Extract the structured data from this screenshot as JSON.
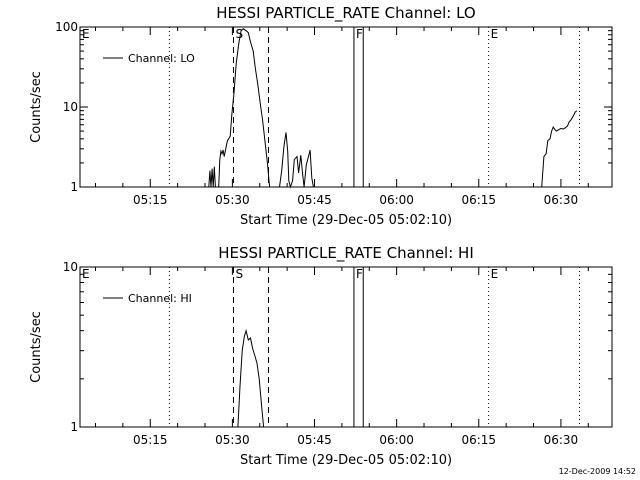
{
  "chart_data": [
    {
      "type": "line",
      "title": "HESSI PARTICLE_RATE Channel: LO",
      "xlabel": "Start Time (29-Dec-05 05:02:10)",
      "ylabel": "Counts/sec",
      "yscale": "log",
      "ylim": [
        1,
        100
      ],
      "y_ticks": [
        "1",
        "10",
        "100"
      ],
      "x_ticks": [
        "05:15",
        "05:30",
        "05:45",
        "06:00",
        "06:15",
        "06:30"
      ],
      "x_tick_minutes": [
        15,
        30,
        45,
        60,
        75,
        90
      ],
      "xlim_minutes": [
        2.17,
        99.33
      ],
      "grid": false,
      "legend": "top-left",
      "series": [
        {
          "name": "Channel: LO",
          "segments": [
            [
              [
                25.7,
                1.0
              ],
              [
                25.9,
                1.6
              ],
              [
                26.1,
                1.0
              ],
              [
                26.3,
                1.7
              ],
              [
                26.5,
                1.0
              ],
              [
                26.7,
                1.8
              ],
              [
                26.9,
                1.0
              ],
              [
                27.5,
                1.0
              ],
              [
                27.7,
                2.2
              ],
              [
                27.9,
                2.8
              ],
              [
                28.1,
                2.6
              ],
              [
                28.3,
                2.9
              ],
              [
                28.5,
                2.4
              ],
              [
                28.9,
                3.3
              ],
              [
                29.1,
                3.8
              ],
              [
                29.6,
                4.3
              ],
              [
                29.9,
                8.0
              ],
              [
                30.3,
                15.0
              ],
              [
                30.7,
                35.0
              ],
              [
                31.2,
                65.0
              ],
              [
                31.6,
                90.0
              ],
              [
                32.0,
                95.0
              ],
              [
                32.5,
                90.0
              ],
              [
                32.9,
                85.0
              ],
              [
                33.3,
                65.0
              ],
              [
                33.8,
                50.0
              ],
              [
                34.2,
                30.0
              ],
              [
                34.6,
                20.0
              ],
              [
                35.1,
                11.0
              ],
              [
                35.5,
                7.0
              ],
              [
                35.9,
                4.0
              ],
              [
                36.4,
                2.0
              ],
              [
                36.8,
                1.0
              ]
            ],
            [
              [
                38.6,
                1.0
              ],
              [
                39.0,
                1.6
              ],
              [
                39.4,
                3.2
              ],
              [
                39.8,
                4.8
              ],
              [
                40.1,
                2.8
              ],
              [
                40.3,
                1.2
              ],
              [
                40.6,
                1.0
              ],
              [
                41.0,
                1.2
              ],
              [
                41.3,
                2.2
              ],
              [
                41.8,
                2.4
              ],
              [
                42.1,
                1.5
              ],
              [
                42.5,
                2.5
              ],
              [
                42.8,
                1.5
              ],
              [
                43.1,
                1.0
              ],
              [
                43.5,
                1.9
              ],
              [
                43.9,
                2.4
              ],
              [
                44.2,
                2.9
              ],
              [
                44.5,
                1.3
              ],
              [
                44.8,
                1.0
              ]
            ],
            [
              [
                86.5,
                1.0
              ],
              [
                86.9,
                2.4
              ],
              [
                87.3,
                2.6
              ],
              [
                87.6,
                3.8
              ],
              [
                88.0,
                4.0
              ],
              [
                88.3,
                5.0
              ],
              [
                88.6,
                5.6
              ],
              [
                88.9,
                5.2
              ],
              [
                89.2,
                5.0
              ],
              [
                89.6,
                5.2
              ],
              [
                90.0,
                5.4
              ],
              [
                90.4,
                5.3
              ],
              [
                90.8,
                5.5
              ],
              [
                91.2,
                5.8
              ],
              [
                91.5,
                6.5
              ],
              [
                91.9,
                7.0
              ],
              [
                92.3,
                7.8
              ],
              [
                92.6,
                8.6
              ],
              [
                92.9,
                9.0
              ]
            ]
          ]
        }
      ],
      "markers": [
        {
          "label": "E",
          "minute": 2.17,
          "style": "dotted"
        },
        {
          "label": "",
          "minute": 18.5,
          "style": "dotted"
        },
        {
          "label": "S",
          "minute": 30.2,
          "style": "dashed"
        },
        {
          "label": "",
          "minute": 36.6,
          "style": "dashed"
        },
        {
          "label": "F",
          "minute": 52.2,
          "style": "solid"
        },
        {
          "label": "",
          "minute": 53.9,
          "style": "solid"
        },
        {
          "label": "E",
          "minute": 76.8,
          "style": "dotted"
        },
        {
          "label": "",
          "minute": 93.4,
          "style": "dotted"
        }
      ]
    },
    {
      "type": "line",
      "title": "HESSI PARTICLE_RATE Channel: HI",
      "xlabel": "Start Time (29-Dec-05 05:02:10)",
      "ylabel": "Counts/sec",
      "yscale": "log",
      "ylim": [
        1,
        10
      ],
      "y_ticks": [
        "1",
        "10"
      ],
      "x_ticks": [
        "05:15",
        "05:30",
        "05:45",
        "06:00",
        "06:15",
        "06:30"
      ],
      "x_tick_minutes": [
        15,
        30,
        45,
        60,
        75,
        90
      ],
      "xlim_minutes": [
        2.17,
        99.33
      ],
      "grid": false,
      "legend": "top-left",
      "series": [
        {
          "name": "Channel: HI",
          "segments": [
            [
              [
                31.0,
                1.0
              ],
              [
                31.4,
                1.8
              ],
              [
                31.8,
                3.0
              ],
              [
                32.2,
                3.7
              ],
              [
                32.5,
                4.0
              ],
              [
                32.9,
                3.5
              ],
              [
                33.3,
                3.6
              ],
              [
                33.7,
                3.1
              ],
              [
                34.1,
                2.8
              ],
              [
                34.5,
                2.5
              ],
              [
                34.9,
                2.0
              ],
              [
                35.3,
                1.4
              ],
              [
                35.7,
                1.0
              ]
            ]
          ]
        }
      ],
      "markers": [
        {
          "label": "E",
          "minute": 2.17,
          "style": "dotted"
        },
        {
          "label": "",
          "minute": 18.5,
          "style": "dotted"
        },
        {
          "label": "S",
          "minute": 30.2,
          "style": "dashed"
        },
        {
          "label": "",
          "minute": 36.6,
          "style": "dashed"
        },
        {
          "label": "F",
          "minute": 52.2,
          "style": "solid"
        },
        {
          "label": "",
          "minute": 53.9,
          "style": "solid"
        },
        {
          "label": "E",
          "minute": 76.8,
          "style": "dotted"
        },
        {
          "label": "",
          "minute": 93.4,
          "style": "dotted"
        }
      ]
    }
  ],
  "footer": "12-Dec-2009 14:52",
  "colors": {
    "background": "#ffffff",
    "line": "#000000"
  }
}
